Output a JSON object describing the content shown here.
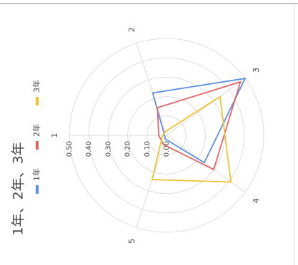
{
  "chart_data": {
    "type": "radar",
    "title": "1年、2年、3年",
    "categories": [
      "1",
      "2",
      "3",
      "4",
      "5"
    ],
    "series": [
      {
        "name": "1年",
        "color": "#5b8fe8",
        "values": [
          0.01,
          0.23,
          0.5,
          0.24,
          0.02
        ]
      },
      {
        "name": "2年",
        "color": "#e06666",
        "values": [
          0.04,
          0.15,
          0.47,
          0.3,
          0.05
        ]
      },
      {
        "name": "3年",
        "color": "#f1c232",
        "values": [
          0.02,
          0.02,
          0.34,
          0.41,
          0.24
        ]
      }
    ],
    "ylim": [
      0,
      0.5
    ],
    "yticks": [
      {
        "value": 0,
        "label": "0.00"
      },
      {
        "value": 0.1,
        "label": "0.10"
      },
      {
        "value": 0.2,
        "label": "0.20"
      },
      {
        "value": 0.3,
        "label": "0.30"
      },
      {
        "value": 0.4,
        "label": "0.40"
      },
      {
        "value": 0.5,
        "label": "0.50"
      }
    ],
    "grid": true,
    "legend": "top"
  }
}
